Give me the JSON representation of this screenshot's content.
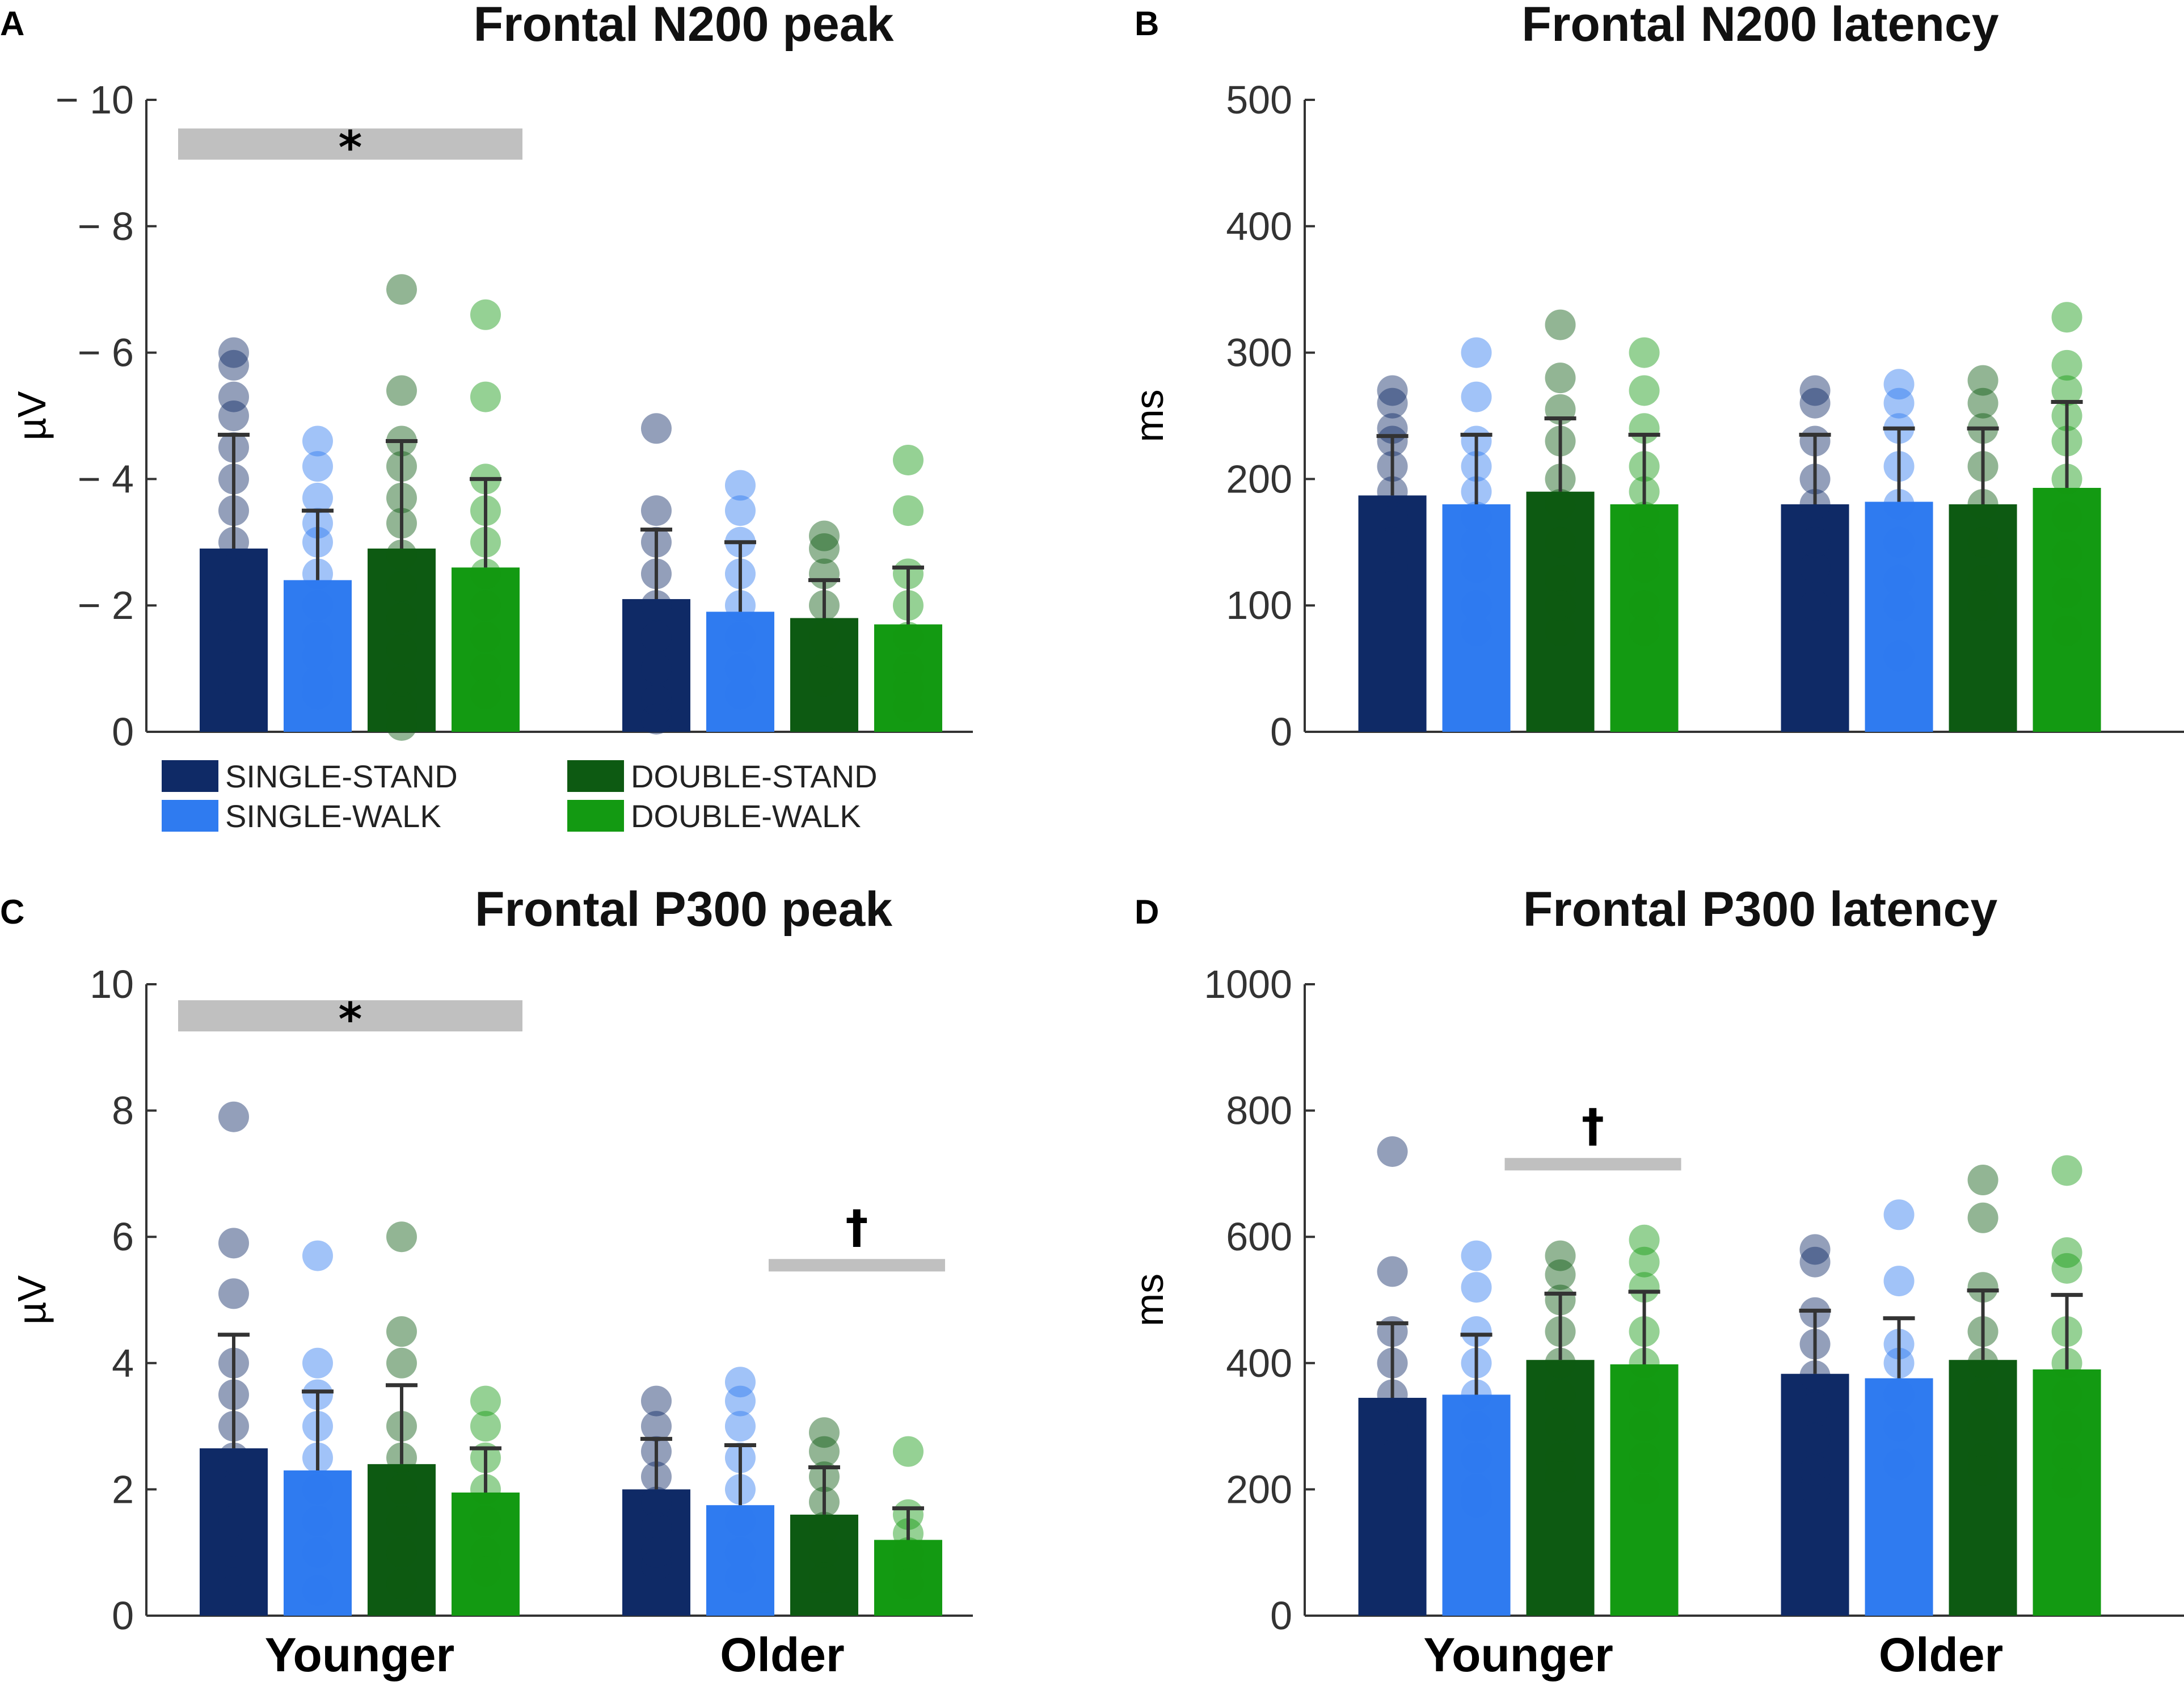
{
  "colors": {
    "single_stand": "#0f2a66",
    "single_walk": "#2f7bf0",
    "double_stand": "#0d5a12",
    "double_walk": "#139a12",
    "sig_bar": "#c0c0c0",
    "error_bar": "#333333"
  },
  "legend": [
    {
      "key": "single_stand",
      "label": "SINGLE-STAND"
    },
    {
      "key": "single_walk",
      "label": "SINGLE-WALK"
    },
    {
      "key": "double_stand",
      "label": "DOUBLE-STAND"
    },
    {
      "key": "double_walk",
      "label": "DOUBLE-WALK"
    }
  ],
  "chart_data": [
    {
      "panel": "A",
      "type": "bar",
      "title": "Frontal N200 peak",
      "ylabel": "µV",
      "ylim": [
        0,
        -10
      ],
      "yticks": [
        0,
        -2,
        -4,
        -6,
        -8,
        -10
      ],
      "ytick_labels": [
        "0",
        "− 2",
        "− 4",
        "− 6",
        "− 8",
        "− 10"
      ],
      "categories": [
        "Younger",
        "Older"
      ],
      "series": [
        {
          "key": "single_stand",
          "name": "SINGLE-STAND",
          "values": [
            -2.9,
            -2.1
          ],
          "errors": [
            1.8,
            1.1
          ],
          "points": [
            [
              -6.0,
              -5.8,
              -5.3,
              -5.0,
              -4.5,
              -4.0,
              -3.5,
              -3.0,
              -2.5,
              -2.0,
              -1.5,
              -1.0,
              -0.7,
              -0.4
            ],
            [
              -4.8,
              -3.5,
              -3.0,
              -2.5,
              -2.0,
              -1.5,
              -1.0,
              -0.5,
              -0.2
            ]
          ]
        },
        {
          "key": "single_walk",
          "name": "SINGLE-WALK",
          "values": [
            -2.4,
            -1.9
          ],
          "errors": [
            1.1,
            1.1
          ],
          "points": [
            [
              -4.6,
              -4.2,
              -3.7,
              -3.3,
              -3.0,
              -2.5,
              -2.0,
              -1.5,
              -1.2,
              -0.8,
              -0.6
            ],
            [
              -3.9,
              -3.5,
              -3.0,
              -2.5,
              -2.0,
              -1.5,
              -1.0,
              -0.6
            ]
          ]
        },
        {
          "key": "double_stand",
          "name": "DOUBLE-STAND",
          "values": [
            -2.9,
            -1.8
          ],
          "errors": [
            1.7,
            0.6
          ],
          "points": [
            [
              -7.0,
              -5.4,
              -4.6,
              -4.2,
              -3.7,
              -3.3,
              -2.8,
              -2.3,
              -1.8,
              -1.3,
              -0.8,
              -0.4,
              -0.1
            ],
            [
              -3.1,
              -2.9,
              -2.5,
              -2.0,
              -1.5,
              -1.0,
              -0.8
            ]
          ]
        },
        {
          "key": "double_walk",
          "name": "DOUBLE-WALK",
          "values": [
            -2.6,
            -1.7
          ],
          "errors": [
            1.4,
            0.9
          ],
          "points": [
            [
              -6.6,
              -5.3,
              -4.0,
              -3.5,
              -3.0,
              -2.5,
              -2.0,
              -1.5,
              -1.0,
              -0.6
            ],
            [
              -4.3,
              -3.5,
              -2.5,
              -2.0,
              -1.5,
              -1.0,
              -0.7,
              -0.4
            ]
          ]
        }
      ],
      "significance": [
        {
          "mark": "*",
          "y": -9.3,
          "from": {
            "group": 0,
            "series": 0
          },
          "to": {
            "group": 0,
            "series": 3
          }
        }
      ]
    },
    {
      "panel": "B",
      "type": "bar",
      "title": "Frontal N200 latency",
      "ylabel": "ms",
      "ylim": [
        0,
        500
      ],
      "yticks": [
        0,
        100,
        200,
        300,
        400,
        500
      ],
      "ytick_labels": [
        "0",
        "100",
        "200",
        "300",
        "400",
        "500"
      ],
      "categories": [
        "Younger",
        "Older"
      ],
      "series": [
        {
          "key": "single_stand",
          "name": "SINGLE-STAND",
          "values": [
            187,
            180
          ],
          "errors": [
            47,
            55
          ],
          "points": [
            [
              270,
              260,
              240,
              230,
              210,
              190,
              170,
              150,
              130,
              115
            ],
            [
              270,
              260,
              230,
              200,
              180,
              150,
              130,
              100
            ]
          ]
        },
        {
          "key": "single_walk",
          "name": "SINGLE-WALK",
          "values": [
            180,
            182
          ],
          "errors": [
            55,
            58
          ],
          "points": [
            [
              300,
              265,
              230,
              210,
              190,
              170,
              150,
              130,
              100,
              80
            ],
            [
              275,
              260,
              240,
              210,
              180,
              150,
              120,
              100,
              60
            ]
          ]
        },
        {
          "key": "double_stand",
          "name": "DOUBLE-STAND",
          "values": [
            190,
            180
          ],
          "errors": [
            58,
            60
          ],
          "points": [
            [
              322,
              280,
              255,
              230,
              200,
              180,
              150,
              120,
              100,
              80
            ],
            [
              278,
              260,
              240,
              210,
              180,
              150,
              120,
              100
            ]
          ]
        },
        {
          "key": "double_walk",
          "name": "DOUBLE-WALK",
          "values": [
            180,
            193
          ],
          "errors": [
            55,
            68
          ],
          "points": [
            [
              300,
              270,
              240,
              210,
              190,
              170,
              150,
              130,
              100,
              80
            ],
            [
              328,
              290,
              270,
              250,
              230,
              200,
              170,
              140,
              110,
              80
            ]
          ]
        }
      ],
      "significance": []
    },
    {
      "panel": "C",
      "type": "bar",
      "title": "Frontal P300 peak",
      "ylabel": "µV",
      "ylim": [
        0,
        10
      ],
      "yticks": [
        0,
        2,
        4,
        6,
        8,
        10
      ],
      "ytick_labels": [
        "0",
        "2",
        "4",
        "6",
        "8",
        "10"
      ],
      "categories": [
        "Younger",
        "Older"
      ],
      "series": [
        {
          "key": "single_stand",
          "name": "SINGLE-STAND",
          "values": [
            2.65,
            2.0
          ],
          "errors": [
            1.8,
            0.8
          ],
          "points": [
            [
              7.9,
              5.9,
              5.1,
              4.0,
              3.5,
              3.0,
              2.5,
              2.0,
              1.5,
              1.0,
              0.7,
              0.4
            ],
            [
              3.4,
              3.0,
              2.6,
              2.2,
              1.8,
              1.4,
              1.0,
              0.8
            ]
          ]
        },
        {
          "key": "single_walk",
          "name": "SINGLE-WALK",
          "values": [
            2.3,
            1.75
          ],
          "errors": [
            1.25,
            0.95
          ],
          "points": [
            [
              5.7,
              4.0,
              3.5,
              3.0,
              2.5,
              2.0,
              1.5,
              1.0,
              0.4
            ],
            [
              3.7,
              3.4,
              3.0,
              2.5,
              2.0,
              1.5,
              1.0,
              0.6
            ]
          ]
        },
        {
          "key": "double_stand",
          "name": "DOUBLE-STAND",
          "values": [
            2.4,
            1.6
          ],
          "errors": [
            1.25,
            0.75
          ],
          "points": [
            [
              6.0,
              4.5,
              4.0,
              3.0,
              2.5,
              2.0,
              1.5,
              1.0,
              0.5
            ],
            [
              2.9,
              2.6,
              2.2,
              1.8,
              1.4,
              1.0,
              0.6
            ]
          ]
        },
        {
          "key": "double_walk",
          "name": "DOUBLE-WALK",
          "values": [
            1.95,
            1.2
          ],
          "errors": [
            0.7,
            0.5
          ],
          "points": [
            [
              3.4,
              3.0,
              2.5,
              2.0,
              1.5,
              1.0,
              0.7
            ],
            [
              2.6,
              1.6,
              1.3,
              1.0,
              0.8,
              0.5
            ]
          ]
        }
      ],
      "significance": [
        {
          "mark": "*",
          "y": 9.5,
          "from": {
            "group": 0,
            "series": 0
          },
          "to": {
            "group": 0,
            "series": 3
          }
        },
        {
          "mark": "†",
          "y": 5.55,
          "from": {
            "group": 1,
            "series": 2
          },
          "to": {
            "group": 1,
            "series": 3
          }
        }
      ]
    },
    {
      "panel": "D",
      "type": "bar",
      "title": "Frontal P300 latency",
      "ylabel": "ms",
      "ylim": [
        0,
        1000
      ],
      "yticks": [
        0,
        200,
        400,
        600,
        800,
        1000
      ],
      "ytick_labels": [
        "0",
        "200",
        "400",
        "600",
        "800",
        "1000"
      ],
      "categories": [
        "Younger",
        "Older"
      ],
      "series": [
        {
          "key": "single_stand",
          "name": "SINGLE-STAND",
          "values": [
            345,
            383
          ],
          "errors": [
            118,
            100
          ],
          "points": [
            [
              735,
              545,
              450,
              400,
              350,
              300,
              250,
              200
            ],
            [
              580,
              560,
              480,
              430,
              380,
              330,
              280,
              230,
              200
            ]
          ]
        },
        {
          "key": "single_walk",
          "name": "SINGLE-WALK",
          "values": [
            350,
            376
          ],
          "errors": [
            95,
            95
          ],
          "points": [
            [
              570,
              520,
              450,
              400,
              350,
              300,
              250,
              200,
              180
            ],
            [
              635,
              530,
              430,
              400,
              350,
              300,
              240
            ]
          ]
        },
        {
          "key": "double_stand",
          "name": "DOUBLE-STAND",
          "values": [
            405,
            405
          ],
          "errors": [
            105,
            110
          ],
          "points": [
            [
              570,
              540,
              500,
              450,
              400,
              350,
              300,
              250,
              220
            ],
            [
              690,
              630,
              520,
              450,
              400,
              350,
              300,
              250,
              230
            ]
          ]
        },
        {
          "key": "double_walk",
          "name": "DOUBLE-WALK",
          "values": [
            398,
            390
          ],
          "errors": [
            115,
            118
          ],
          "points": [
            [
              595,
              560,
              520,
              450,
              400,
              350,
              300,
              250,
              200
            ],
            [
              705,
              575,
              550,
              450,
              400,
              350,
              300,
              250,
              210
            ]
          ]
        }
      ],
      "significance": [
        {
          "mark": "†",
          "y": 715,
          "from": {
            "group": 0,
            "series": 2
          },
          "to": {
            "group": 0,
            "series": 3
          }
        }
      ]
    }
  ]
}
